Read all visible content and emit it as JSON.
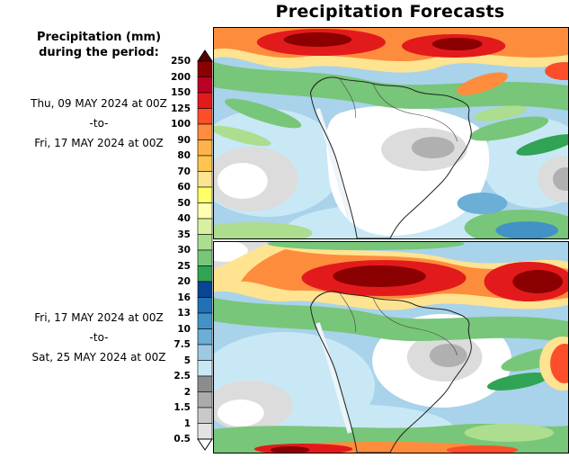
{
  "title": "Precipitation Forecasts",
  "legend": {
    "title_line1": "Precipitation (mm)",
    "title_line2": "during the period:",
    "unit": "mm",
    "ticks": [
      "250",
      "200",
      "150",
      "125",
      "100",
      "90",
      "80",
      "70",
      "60",
      "50",
      "40",
      "35",
      "30",
      "25",
      "20",
      "16",
      "13",
      "10",
      "7.5",
      "5",
      "2.5",
      "2",
      "1.5",
      "1",
      "0.5"
    ],
    "segment_colors_top_to_bottom": [
      "#8b0000",
      "#bd0026",
      "#e31a1c",
      "#fc4e2a",
      "#fd8d3c",
      "#feb24c",
      "#fec44f",
      "#fee391",
      "#ffff66",
      "#ffffb2",
      "#d9f0a3",
      "#addd8e",
      "#78c679",
      "#31a354",
      "#084594",
      "#2171b5",
      "#4292c6",
      "#6baed6",
      "#9ecae1",
      "#c9e8f5",
      "#8c8c8c",
      "#ababab",
      "#c9c9c9",
      "#e3e3e3"
    ],
    "top_arrow_color": "#5a0000",
    "bottom_arrow_color": "#ffffff"
  },
  "panels": [
    {
      "id": "forecast-week-1",
      "period_from": "Thu, 09 MAY 2024 at 00Z",
      "period_sep": "-to-",
      "period_to": "Fri, 17 MAY 2024 at 00Z"
    },
    {
      "id": "forecast-week-2",
      "period_from": "Fri, 17 MAY 2024 at 00Z",
      "period_sep": "-to-",
      "period_to": "Sat, 25 MAY 2024 at 00Z"
    }
  ]
}
